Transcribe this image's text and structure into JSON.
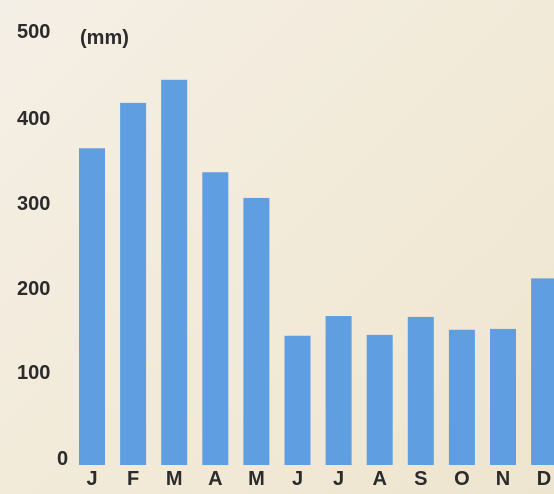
{
  "chart_data": {
    "type": "bar",
    "categories": [
      "J",
      "F",
      "M",
      "A",
      "M",
      "J",
      "J",
      "A",
      "S",
      "O",
      "N",
      "D"
    ],
    "values": [
      370,
      423,
      450,
      342,
      312,
      151,
      174,
      152,
      173,
      158,
      159,
      218
    ],
    "ylabel": "(mm)",
    "yticks": [
      "0",
      "100",
      "200",
      "300",
      "400",
      "500"
    ],
    "ylim": [
      0,
      500
    ],
    "grid": false,
    "colors": {
      "bar": "#5f9ee0",
      "text": "#2b2b2b"
    }
  }
}
